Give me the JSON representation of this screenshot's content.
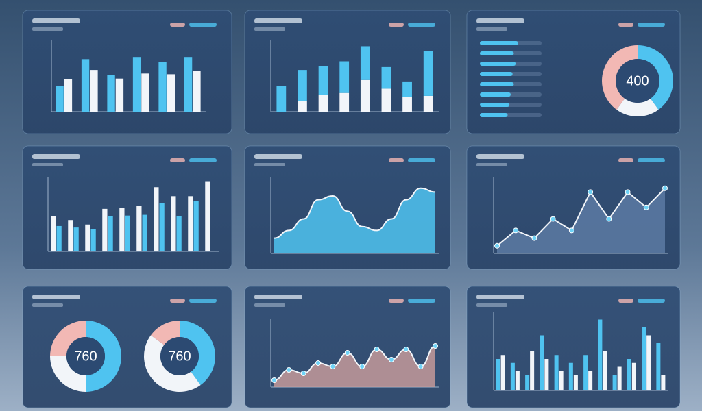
{
  "chart_data": [
    {
      "type": "bar",
      "ylim": [
        0,
        100
      ],
      "series": [
        {
          "color": "#4fc3f0",
          "values": [
            36,
            73,
            51,
            76,
            69,
            76
          ]
        },
        {
          "color": "#f2f5f9",
          "values": [
            45,
            58,
            46,
            53,
            52,
            57
          ]
        }
      ]
    },
    {
      "type": "bar",
      "stacked": true,
      "ylim": [
        0,
        100
      ],
      "series": [
        {
          "color": "#f2f5f9",
          "values": [
            0,
            15,
            23,
            26,
            44,
            32,
            20,
            22
          ]
        },
        {
          "color": "#4fc3f0",
          "values": [
            36,
            43,
            40,
            44,
            47,
            30,
            22,
            62
          ]
        }
      ]
    },
    {
      "type": "hbar",
      "xlim": [
        0,
        100
      ],
      "color": "#4fc3f0",
      "values": [
        62,
        55,
        58,
        53,
        55,
        50,
        48,
        45
      ]
    },
    {
      "type": "donut",
      "center_label": "400",
      "values": [
        40,
        20,
        40
      ],
      "colors": [
        "#4fc3f0",
        "#f2f5f9",
        "#f2b8b4"
      ]
    },
    {
      "type": "bar",
      "ylim": [
        0,
        100
      ],
      "series": [
        {
          "color": "#f2f5f9",
          "values": [
            47,
            42,
            36,
            57,
            58,
            61,
            86,
            74,
            74,
            94
          ]
        },
        {
          "color": "#4fc3f0",
          "values": [
            34,
            32,
            30,
            47,
            48,
            49,
            65,
            47,
            67,
            0
          ]
        }
      ]
    },
    {
      "type": "area",
      "smooth": true,
      "ylim": [
        0,
        100
      ],
      "color": "#4fc3f0",
      "values": [
        20,
        30,
        45,
        70,
        75,
        55,
        35,
        30,
        45,
        70,
        85,
        80
      ]
    },
    {
      "type": "area",
      "markers": true,
      "ylim": [
        0,
        100
      ],
      "color": "#5c7aa3",
      "values": [
        10,
        30,
        20,
        45,
        30,
        80,
        45,
        80,
        60,
        85
      ]
    },
    {
      "type": "donut",
      "center_label": "760",
      "values": [
        50,
        25,
        25
      ],
      "colors": [
        "#4fc3f0",
        "#f2f5f9",
        "#f2b8b4"
      ]
    },
    {
      "type": "donut",
      "center_label": "760",
      "values": [
        40,
        45,
        15
      ],
      "colors": [
        "#4fc3f0",
        "#f2f5f9",
        "#f2b8b4"
      ]
    },
    {
      "type": "area",
      "smooth": true,
      "markers": true,
      "ylim": [
        0,
        100
      ],
      "color": "#c49a9a",
      "values": [
        10,
        25,
        20,
        35,
        30,
        50,
        30,
        55,
        40,
        55,
        30,
        60
      ]
    },
    {
      "type": "bar",
      "ylim": [
        0,
        100
      ],
      "series": [
        {
          "color": "#4fc3f0",
          "values": [
            40,
            35,
            20,
            70,
            45,
            35,
            45,
            90,
            20,
            40,
            80,
            60
          ]
        },
        {
          "color": "#f2f5f9",
          "values": [
            45,
            25,
            50,
            40,
            25,
            20,
            25,
            50,
            30,
            35,
            70,
            20
          ]
        }
      ]
    }
  ]
}
